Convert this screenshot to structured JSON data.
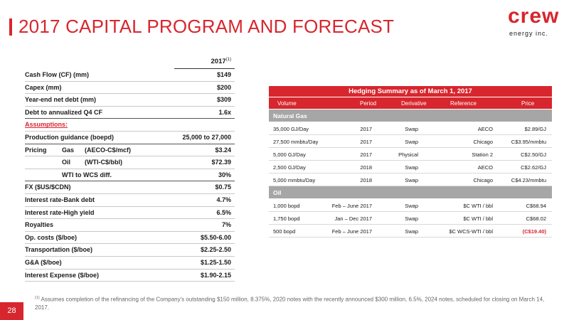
{
  "title": "2017 CAPITAL PROGRAM AND FORECAST",
  "logo": {
    "word": "crew",
    "sub": "energy inc."
  },
  "left_table": {
    "year_header": "2017",
    "year_note": "(1)",
    "rows": [
      {
        "label": "Cash Flow (CF) (mm)",
        "value": "$149"
      },
      {
        "label": "Capex (mm)",
        "value": "$200"
      },
      {
        "label": "Year-end net debt (mm)",
        "value": "$309"
      },
      {
        "label": "Debt to annualized Q4 CF",
        "value": "1.6x"
      }
    ],
    "assumptions_label": "Assumptions:",
    "assumption_rows_a": [
      {
        "label": "Production guidance (boepd)",
        "value": "25,000 to 27,000"
      }
    ],
    "pricing": {
      "label": "Pricing",
      "gas_label": "Gas",
      "gas_unit": "(AECO-C$/mcf)",
      "gas_value": "$3.24",
      "oil_label": "Oil",
      "oil_unit": "(WTI-C$/bbl)",
      "oil_value": "$72.39",
      "wcs_label": "WTI to WCS diff.",
      "wcs_value": "30%"
    },
    "assumption_rows_b": [
      {
        "label": "FX ($US/$CDN)",
        "value": "$0.75"
      },
      {
        "label": "Interest rate-Bank debt",
        "value": "4.7%"
      },
      {
        "label": "Interest rate-High yield",
        "value": "6.5%"
      },
      {
        "label": "Royalties",
        "value": "7%"
      },
      {
        "label": "Op. costs ($/boe)",
        "value": "$5.50-6.00"
      },
      {
        "label": "Transportation ($/boe)",
        "value": "$2.25-2.50"
      },
      {
        "label": "G&A ($/boe)",
        "value": "$1.25-1.50"
      },
      {
        "label": "Interest Expense  ($/boe)",
        "value": "$1.90-2.15"
      }
    ]
  },
  "hedging": {
    "title": "Hedging Summary as of March 1, 2017",
    "columns": [
      "Volume",
      "Period",
      "Derivative",
      "Reference",
      "Price"
    ],
    "sections": [
      {
        "name": "Natural Gas",
        "rows": [
          [
            "35,000 GJ/Day",
            "2017",
            "Swap",
            "AECO",
            "$2.89/GJ"
          ],
          [
            "27,500 mmbtu/Day",
            "2017",
            "Swap",
            "Chicago",
            "C$3.95/mmbtu"
          ],
          [
            "5,000 GJ/Day",
            "2017",
            "Physical",
            "Station 2",
            "C$2.50/GJ"
          ],
          [
            "2,500 GJ/Day",
            "2018",
            "Swap",
            "AECO",
            "C$2.62/GJ"
          ],
          [
            "5,000 mmbtu/Day",
            "2018",
            "Swap",
            "Chicago",
            "C$4.23/mmbtu"
          ]
        ]
      },
      {
        "name": "Oil",
        "rows": [
          [
            "1,000 bopd",
            "Feb – June 2017",
            "Swap",
            "$C WTI / bbl",
            "C$68.94"
          ],
          [
            "1,750 bopd",
            "Jan – Dec 2017",
            "Swap",
            "$C WTI / bbl",
            "C$68.02"
          ],
          [
            "500 bopd",
            "Feb – June 2017",
            "Swap",
            "$C WCS-WTI / bbl",
            "(C$19.40)"
          ]
        ]
      }
    ]
  },
  "footnote": {
    "marker": "(1)",
    "text": "Assumes completion of the refinancing of the Company's outstanding $150 million, 8.375%, 2020 notes with the recently announced $300 million, 6.5%, 2024 notes, scheduled for closing on March 14, 2017."
  },
  "page_number": "28",
  "colors": {
    "accent": "#d7262e",
    "section_gray": "#a6a6a6"
  }
}
